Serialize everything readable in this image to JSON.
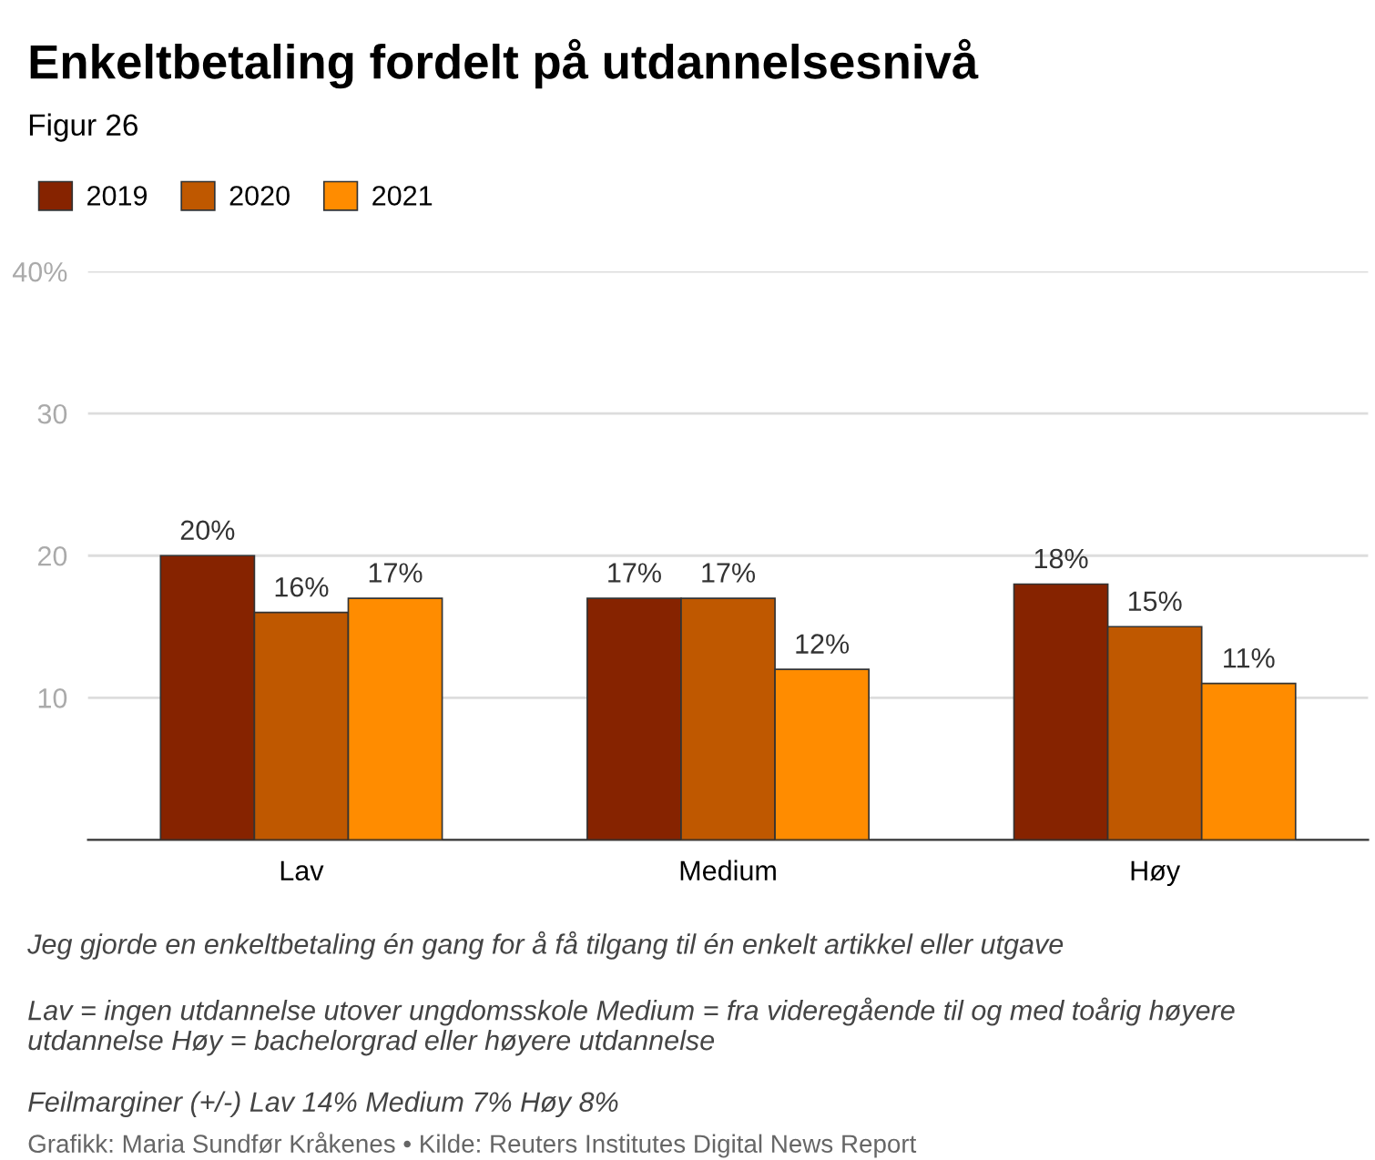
{
  "chart_data": {
    "type": "bar",
    "title": "Enkeltbetaling fordelt på utdannelsesnivå",
    "subtitle": "Figur 26",
    "categories": [
      "Lav",
      "Medium",
      "Høy"
    ],
    "series": [
      {
        "name": "2019",
        "color": "#862300",
        "values": [
          20,
          17,
          18
        ]
      },
      {
        "name": "2020",
        "color": "#bf5800",
        "values": [
          16,
          17,
          15
        ]
      },
      {
        "name": "2021",
        "color": "#ff8c00",
        "values": [
          17,
          12,
          11
        ]
      }
    ],
    "value_labels": [
      [
        "20%",
        "17%",
        "18%"
      ],
      [
        "16%",
        "17%",
        "15%"
      ],
      [
        "17%",
        "12%",
        "11%"
      ]
    ],
    "ylim": [
      0,
      40
    ],
    "yticks": [
      {
        "value": 10,
        "label": "10"
      },
      {
        "value": 20,
        "label": "20"
      },
      {
        "value": 30,
        "label": "30"
      },
      {
        "value": 40,
        "label": "40%"
      }
    ],
    "grid": "y",
    "legend": "top left",
    "annotations": [
      "Jeg gjorde en enkeltbetaling én gang for å få tilgang til én enkelt artikkel eller utgave",
      "Lav = ingen utdannelse utover ungdomsskole Medium = fra videregående til og med toårig høyere utdannelse Høy = bachelorgrad eller høyere utdannelse",
      "Feilmarginer (+/-) Lav 14% Medium 7% Høy 8%",
      "Grafikk: Maria Sundfør Kråkenes • Kilde: Reuters Institutes Digital News Report"
    ]
  }
}
